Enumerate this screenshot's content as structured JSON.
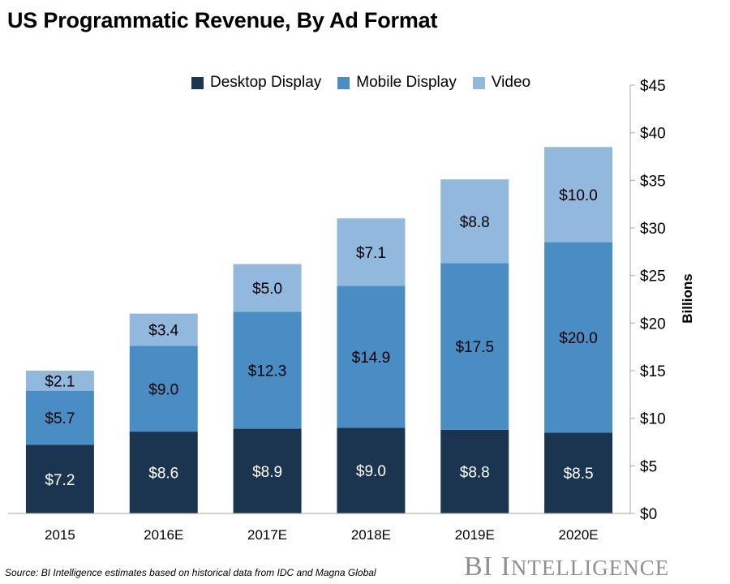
{
  "title": "US Programmatic Revenue, By Ad Format",
  "source": "Source: BI Intelligence estimates based on historical data from IDC and Magna Global",
  "brand": {
    "first": "BI",
    "rest_initial": "I",
    "rest": "NTELLIGENCE"
  },
  "colors": {
    "desktop": "#1b3550",
    "mobile": "#4a8cc4",
    "video": "#92b8de",
    "axis": "#a6a6a6"
  },
  "chart_data": {
    "type": "bar",
    "stacked": true,
    "title": "US Programmatic Revenue, By Ad Format",
    "xlabel": "",
    "ylabel": "Billions",
    "categories": [
      "2015",
      "2016E",
      "2017E",
      "2018E",
      "2019E",
      "2020E"
    ],
    "series": [
      {
        "name": "Desktop Display",
        "values": [
          7.2,
          8.6,
          8.9,
          9.0,
          8.8,
          8.5
        ],
        "labels": [
          "$7.2",
          "$8.6",
          "$8.9",
          "$9.0",
          "$8.8",
          "$8.5"
        ]
      },
      {
        "name": "Mobile Display",
        "values": [
          5.7,
          9.0,
          12.3,
          14.9,
          17.5,
          20.0
        ],
        "labels": [
          "$5.7",
          "$9.0",
          "$12.3",
          "$14.9",
          "$17.5",
          "$20.0"
        ]
      },
      {
        "name": "Video",
        "values": [
          2.1,
          3.4,
          5.0,
          7.1,
          8.8,
          10.0
        ],
        "labels": [
          "$2.1",
          "$3.4",
          "$5.0",
          "$7.1",
          "$8.8",
          "$10.0"
        ]
      }
    ],
    "ylim": [
      0,
      45
    ],
    "yticks": [
      0,
      5,
      10,
      15,
      20,
      25,
      30,
      35,
      40,
      45
    ],
    "ytick_labels": [
      "$0",
      "$5",
      "$10",
      "$15",
      "$20",
      "$25",
      "$30",
      "$35",
      "$40",
      "$45"
    ],
    "y_axis_side": "right",
    "grid": false,
    "legend": "top"
  }
}
